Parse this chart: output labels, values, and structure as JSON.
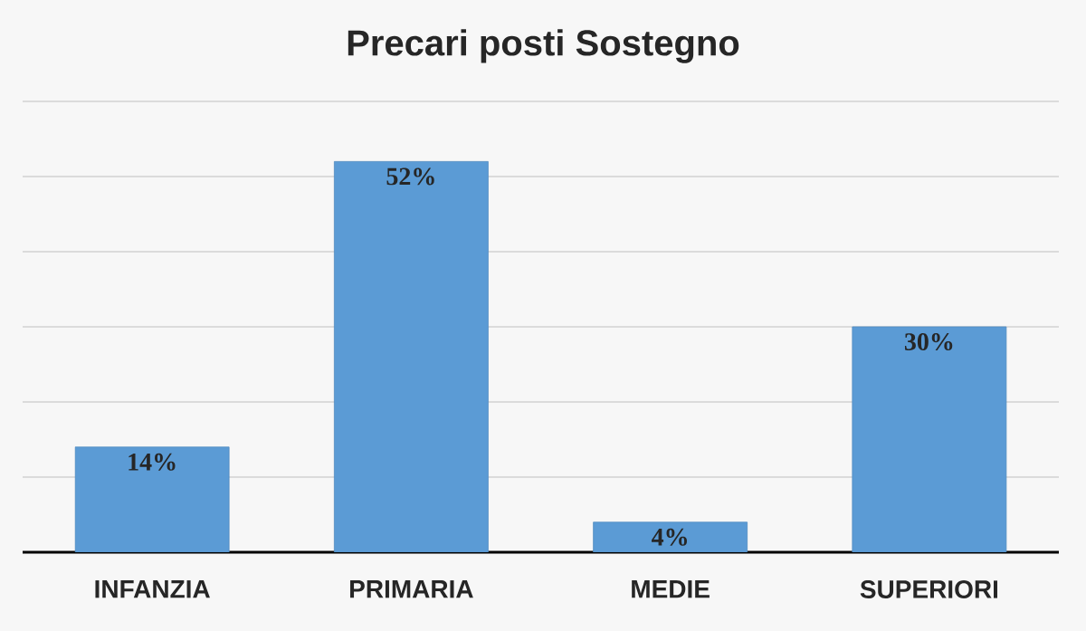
{
  "chart_data": {
    "type": "bar",
    "title": "Precari posti Sostegno",
    "categories": [
      "INFANZIA",
      "PRIMARIA",
      "MEDIE",
      "SUPERIORI"
    ],
    "values": [
      14,
      52,
      4,
      30
    ],
    "value_labels": [
      "14%",
      "52%",
      "4%",
      "30%"
    ],
    "color": "#5b9bd5",
    "ylim": [
      0,
      60
    ],
    "yticks": [
      {
        "value": 0,
        "label": null
      },
      {
        "value": 10,
        "label": null
      },
      {
        "value": 20,
        "label": null
      },
      {
        "value": 30,
        "label": null
      },
      {
        "value": 40,
        "label": null
      },
      {
        "value": 50,
        "label": null
      },
      {
        "value": 60,
        "label": null
      }
    ],
    "tick_labels": "x",
    "grid": "y"
  }
}
